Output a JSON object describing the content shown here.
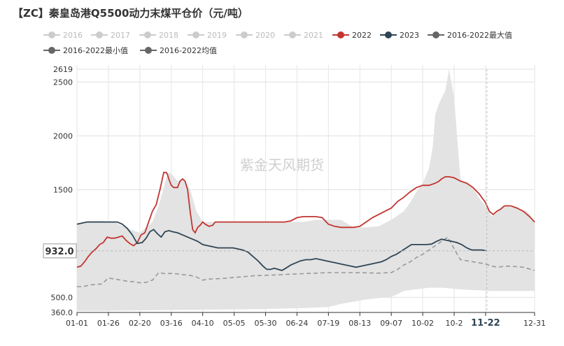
{
  "chart_data": {
    "type": "line",
    "title": "【ZC】秦皇岛港Q5500动力末煤平仓价（元/吨）",
    "watermark": "紫金天风期货",
    "legend": {
      "placement": "top-left",
      "items": [
        {
          "name": "2016",
          "color": "#cccccc",
          "active": false
        },
        {
          "name": "2017",
          "color": "#cccccc",
          "active": false
        },
        {
          "name": "2018",
          "color": "#cccccc",
          "active": false
        },
        {
          "name": "2019",
          "color": "#cccccc",
          "active": false
        },
        {
          "name": "2020",
          "color": "#cccccc",
          "active": false
        },
        {
          "name": "2021",
          "color": "#cccccc",
          "active": false
        },
        {
          "name": "2022",
          "color": "#c23531",
          "active": true
        },
        {
          "name": "2023",
          "color": "#2f4554",
          "active": true
        },
        {
          "name": "2016-2022最大值",
          "color": "#666666",
          "active": true
        },
        {
          "name": "2016-2022最小值",
          "color": "#666666",
          "active": true
        },
        {
          "name": "2016-2022均值",
          "color": "#666666",
          "active": true
        }
      ]
    },
    "x_ticks": [
      "01-01",
      "01-26",
      "02-20",
      "03-16",
      "04-10",
      "05-05",
      "05-30",
      "06-24",
      "07-19",
      "08-13",
      "09-07",
      "10-02",
      "10-2",
      "11-22",
      "12-31"
    ],
    "x_tick_days": [
      0,
      25,
      50,
      75,
      100,
      125,
      150,
      175,
      200,
      225,
      250,
      275,
      300,
      325,
      364
    ],
    "highlight_tick": "11-22",
    "y_ticks": [
      360,
      500,
      1000,
      1500,
      2000,
      2500,
      2619
    ],
    "y_tick_labels": [
      "360.0",
      "500.0",
      "",
      "1500",
      "2000",
      "2500",
      "2619"
    ],
    "ylim": [
      360,
      2619
    ],
    "xlim_days": [
      0,
      364
    ],
    "crosshair": {
      "label": "932.0",
      "value": 932
    },
    "grid": true,
    "series": [
      {
        "name": "2016-2022最大值",
        "kind": "band-upper",
        "color": "#e6e6e6",
        "x": [
          0,
          10,
          20,
          30,
          40,
          50,
          55,
          60,
          65,
          70,
          72,
          75,
          80,
          85,
          90,
          95,
          100,
          110,
          120,
          130,
          140,
          150,
          160,
          170,
          180,
          190,
          200,
          210,
          220,
          230,
          240,
          250,
          255,
          260,
          265,
          270,
          275,
          280,
          283,
          285,
          288,
          290,
          293,
          296,
          300,
          305,
          310,
          315,
          320,
          325,
          330,
          340,
          350,
          358,
          364
        ],
        "values": [
          1180,
          1210,
          1210,
          1200,
          1140,
          1100,
          1150,
          1200,
          1350,
          1560,
          1660,
          1650,
          1580,
          1600,
          1500,
          1300,
          1200,
          1200,
          1200,
          1200,
          1200,
          1200,
          1200,
          1200,
          1200,
          1220,
          1220,
          1220,
          1150,
          1150,
          1160,
          1220,
          1260,
          1300,
          1380,
          1480,
          1560,
          1700,
          1900,
          2200,
          2300,
          2350,
          2420,
          2619,
          2350,
          1600,
          1560,
          1520,
          1420,
          1350,
          1250,
          1350,
          1330,
          1300,
          1200
        ]
      },
      {
        "name": "2016-2022最小值",
        "kind": "band-lower",
        "color": "#e6e6e6",
        "x": [
          0,
          20,
          40,
          60,
          80,
          100,
          120,
          140,
          160,
          180,
          200,
          210,
          220,
          230,
          240,
          250,
          255,
          260,
          270,
          280,
          290,
          300,
          310,
          320,
          330,
          340,
          350,
          364
        ],
        "values": [
          375,
          375,
          378,
          380,
          383,
          385,
          388,
          390,
          395,
          400,
          410,
          440,
          460,
          480,
          495,
          505,
          530,
          560,
          575,
          590,
          590,
          580,
          570,
          565,
          560,
          560,
          560,
          560
        ]
      },
      {
        "name": "2016-2022均值",
        "kind": "line-dashed",
        "color": "#999999",
        "x": [
          0,
          5,
          10,
          15,
          20,
          25,
          30,
          35,
          40,
          45,
          50,
          55,
          60,
          65,
          70,
          75,
          80,
          85,
          90,
          95,
          100,
          105,
          110,
          115,
          120,
          130,
          140,
          150,
          160,
          170,
          180,
          190,
          200,
          210,
          220,
          230,
          240,
          250,
          255,
          260,
          265,
          270,
          275,
          280,
          285,
          290,
          295,
          300,
          305,
          310,
          315,
          320,
          325,
          330,
          335,
          340,
          345,
          350,
          355,
          364
        ],
        "values": [
          600,
          600,
          615,
          620,
          625,
          680,
          670,
          660,
          650,
          645,
          635,
          640,
          660,
          730,
          720,
          722,
          718,
          710,
          705,
          690,
          660,
          670,
          672,
          675,
          680,
          690,
          700,
          705,
          710,
          715,
          720,
          725,
          730,
          730,
          730,
          728,
          725,
          730,
          760,
          800,
          830,
          870,
          900,
          940,
          980,
          1020,
          1060,
          950,
          850,
          840,
          830,
          820,
          810,
          790,
          780,
          790,
          790,
          785,
          780,
          750
        ]
      },
      {
        "name": "2022",
        "kind": "line",
        "color": "#c23531",
        "x": [
          0,
          3,
          6,
          9,
          12,
          15,
          18,
          21,
          24,
          27,
          30,
          33,
          36,
          39,
          42,
          45,
          48,
          51,
          54,
          57,
          60,
          63,
          66,
          69,
          71,
          72,
          73,
          75,
          77,
          80,
          82,
          84,
          86,
          88,
          90,
          92,
          94,
          96,
          98,
          100,
          102,
          105,
          108,
          110,
          115,
          120,
          125,
          130,
          135,
          140,
          145,
          150,
          155,
          160,
          165,
          170,
          175,
          180,
          185,
          190,
          195,
          200,
          205,
          210,
          215,
          220,
          225,
          230,
          235,
          240,
          245,
          250,
          255,
          260,
          265,
          270,
          275,
          280,
          285,
          288,
          290,
          293,
          296,
          300,
          305,
          310,
          315,
          320,
          325,
          328,
          331,
          334,
          337,
          340,
          345,
          350,
          355,
          360,
          364
        ],
        "values": [
          780,
          790,
          830,
          880,
          920,
          950,
          990,
          1010,
          1060,
          1050,
          1050,
          1060,
          1070,
          1030,
          1000,
          980,
          1010,
          1080,
          1100,
          1200,
          1300,
          1360,
          1500,
          1660,
          1660,
          1640,
          1600,
          1540,
          1520,
          1520,
          1580,
          1600,
          1580,
          1500,
          1300,
          1130,
          1100,
          1150,
          1170,
          1200,
          1180,
          1160,
          1170,
          1200,
          1200,
          1200,
          1200,
          1200,
          1200,
          1200,
          1200,
          1200,
          1200,
          1200,
          1200,
          1210,
          1240,
          1250,
          1250,
          1250,
          1240,
          1180,
          1160,
          1150,
          1150,
          1150,
          1160,
          1200,
          1240,
          1270,
          1300,
          1330,
          1390,
          1430,
          1480,
          1520,
          1540,
          1540,
          1560,
          1580,
          1600,
          1620,
          1620,
          1610,
          1580,
          1560,
          1520,
          1460,
          1380,
          1300,
          1270,
          1300,
          1320,
          1350,
          1350,
          1330,
          1300,
          1250,
          1200
        ]
      },
      {
        "name": "2023",
        "kind": "line",
        "color": "#2f4554",
        "x": [
          0,
          4,
          8,
          12,
          16,
          20,
          24,
          28,
          32,
          36,
          40,
          44,
          48,
          52,
          55,
          58,
          61,
          64,
          67,
          70,
          73,
          76,
          80,
          84,
          88,
          92,
          96,
          100,
          104,
          108,
          112,
          116,
          120,
          124,
          128,
          132,
          136,
          140,
          144,
          148,
          151,
          154,
          157,
          160,
          163,
          166,
          170,
          174,
          178,
          182,
          186,
          190,
          194,
          198,
          202,
          206,
          210,
          214,
          218,
          222,
          226,
          230,
          234,
          238,
          242,
          246,
          250,
          254,
          258,
          262,
          266,
          270,
          274,
          278,
          282,
          286,
          290,
          294,
          298,
          302,
          306,
          310,
          314,
          318,
          322,
          326
        ],
        "values": [
          1180,
          1190,
          1200,
          1200,
          1200,
          1200,
          1200,
          1200,
          1200,
          1180,
          1140,
          1080,
          1000,
          1010,
          1050,
          1110,
          1130,
          1090,
          1060,
          1110,
          1120,
          1110,
          1100,
          1080,
          1060,
          1040,
          1020,
          990,
          980,
          970,
          960,
          960,
          960,
          960,
          950,
          940,
          920,
          880,
          840,
          790,
          760,
          760,
          770,
          760,
          750,
          770,
          800,
          820,
          840,
          850,
          850,
          860,
          850,
          840,
          830,
          820,
          810,
          800,
          790,
          780,
          790,
          800,
          810,
          820,
          830,
          850,
          880,
          900,
          930,
          960,
          990,
          990,
          990,
          990,
          995,
          1020,
          1040,
          1030,
          1020,
          1010,
          990,
          960,
          940,
          940,
          940,
          932
        ]
      }
    ]
  }
}
